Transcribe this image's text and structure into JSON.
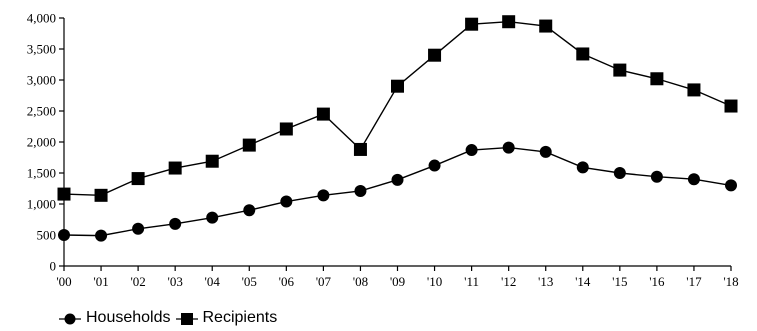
{
  "chart_data": {
    "type": "line",
    "categories": [
      "'00",
      "'01",
      "'02",
      "'03",
      "'04",
      "'05",
      "'06",
      "'07",
      "'08",
      "'09",
      "'10",
      "'11",
      "'12",
      "'13",
      "'14",
      "'15",
      "'16",
      "'17",
      "'18"
    ],
    "ylim": [
      0,
      4000
    ],
    "yticks": [
      0,
      500,
      1000,
      1500,
      2000,
      2500,
      3000,
      3500,
      4000
    ],
    "ytick_labels": [
      "0",
      "500",
      "1,000",
      "1,500",
      "2,000",
      "2,500",
      "3,000",
      "3,500",
      "4,000"
    ],
    "grid": false,
    "legend_position": "bottom-left",
    "series": [
      {
        "name": "Households",
        "marker": "circle",
        "color": "#000000",
        "values": [
          500,
          490,
          600,
          680,
          780,
          900,
          1040,
          1140,
          1210,
          1390,
          1620,
          1870,
          1910,
          1840,
          1590,
          1500,
          1440,
          1400,
          1300
        ]
      },
      {
        "name": "Recipients",
        "marker": "square",
        "color": "#000000",
        "values": [
          1160,
          1140,
          1410,
          1580,
          1690,
          1950,
          2210,
          2450,
          1880,
          2900,
          3400,
          3900,
          3940,
          3870,
          3420,
          3160,
          3020,
          2840,
          2580
        ]
      }
    ]
  }
}
